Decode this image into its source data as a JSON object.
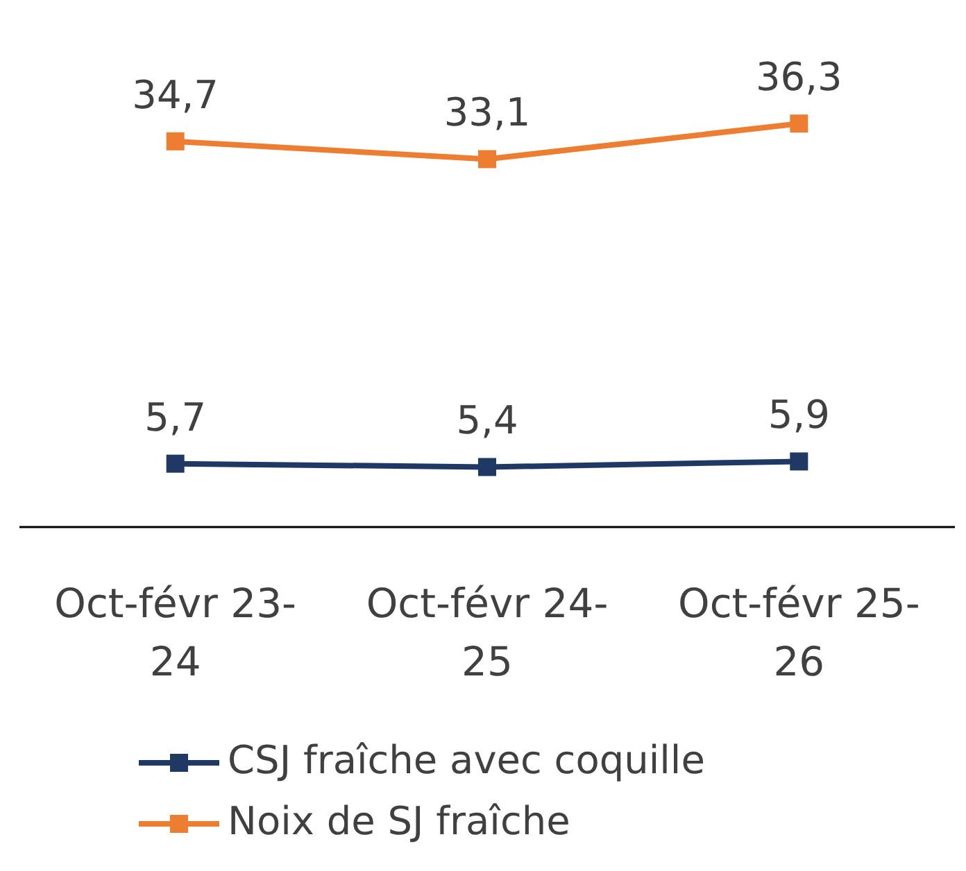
{
  "chart_data": {
    "type": "line",
    "categories": [
      "Oct-févr 23-24",
      "Oct-févr 24-25",
      "Oct-févr 25-26"
    ],
    "series": [
      {
        "name": "CSJ fraîche avec coquille",
        "color": "#1f3864",
        "values": [
          5.7,
          5.4,
          5.9
        ],
        "value_labels": [
          "5,7",
          "5,4",
          "5,9"
        ]
      },
      {
        "name": "Noix de SJ fraîche",
        "color": "#ed7d31",
        "values": [
          34.7,
          33.1,
          36.3
        ],
        "value_labels": [
          "34,7",
          "33,1",
          "36,3"
        ]
      }
    ],
    "marker": "square",
    "legend": "bottom",
    "tick_labels": "x"
  }
}
